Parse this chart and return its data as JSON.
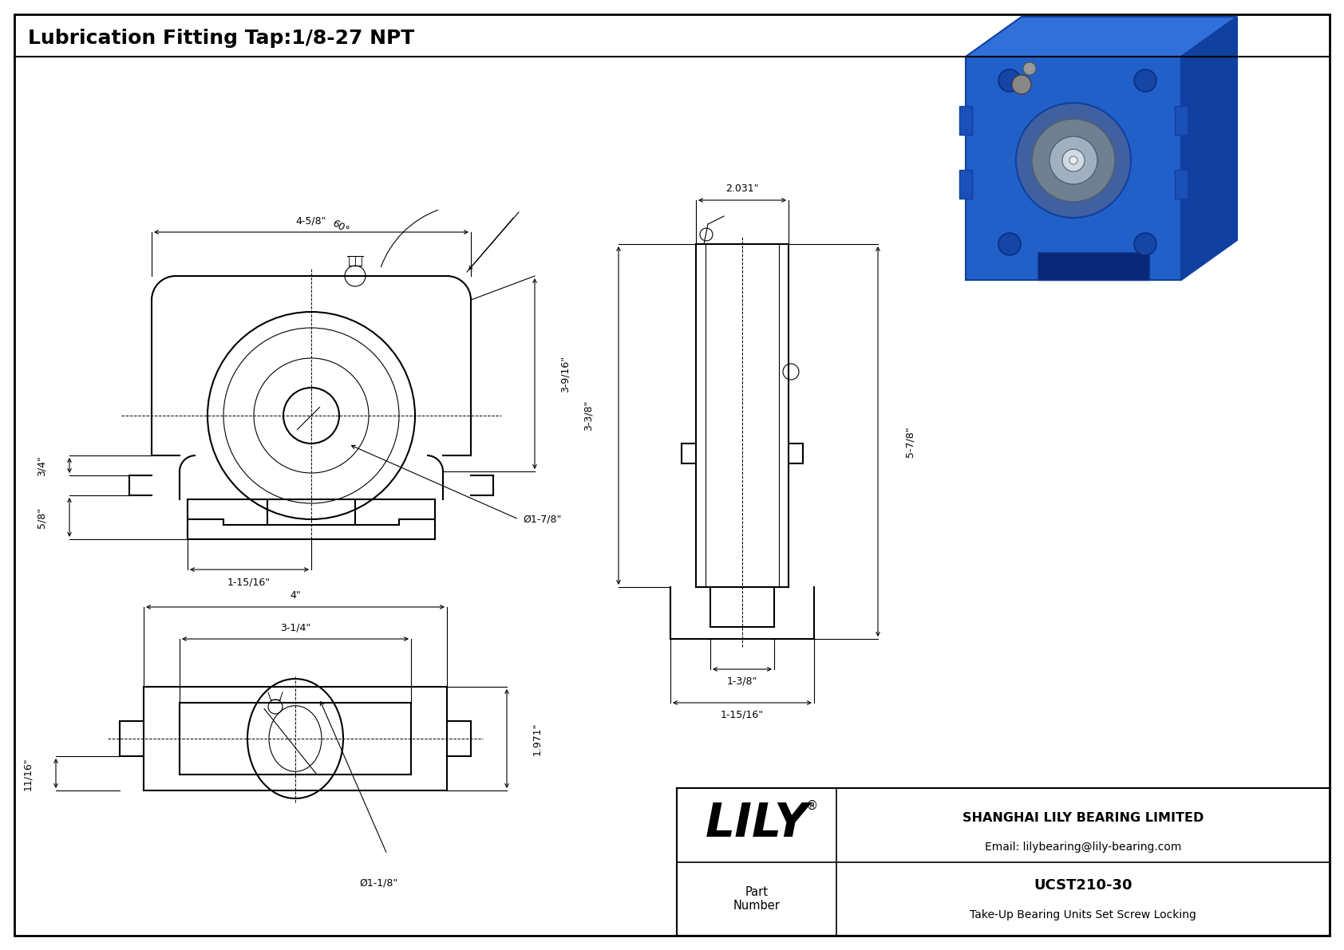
{
  "bg_color": "#ffffff",
  "border_color": "#000000",
  "line_color": "#000000",
  "title": "Lubrication Fitting Tap:1/8-27 NPT",
  "title_fontsize": 18,
  "dim_fontsize": 9,
  "company": "SHANGHAI LILY BEARING LIMITED",
  "email": "Email: lilybearing@lily-bearing.com",
  "part_label": "Part\nNumber",
  "part_number": "UCST210-30",
  "part_desc": "Take-Up Bearing Units Set Screw Locking",
  "lily_text": "LILY",
  "dims": {
    "front_width": "4-5/8\"",
    "front_angle": "60°",
    "front_side_height": "3-9/16\"",
    "front_base_left": "1-15/16\"",
    "front_bore": "Ø1-7/8\"",
    "front_slot_height": "3/4\"",
    "front_slot_depth": "5/8\"",
    "side_width_top": "2.031\"",
    "side_height": "3-3/8\"",
    "side_total_height": "5-7/8\"",
    "side_base_w1": "1-3/8\"",
    "side_base_w2": "1-15/16\"",
    "bottom_width": "4\"",
    "bottom_inner": "3-1/4\"",
    "bottom_height": "1.971\"",
    "bottom_slot": "11/16\"",
    "bottom_bore": "Ø1-1/8\""
  }
}
